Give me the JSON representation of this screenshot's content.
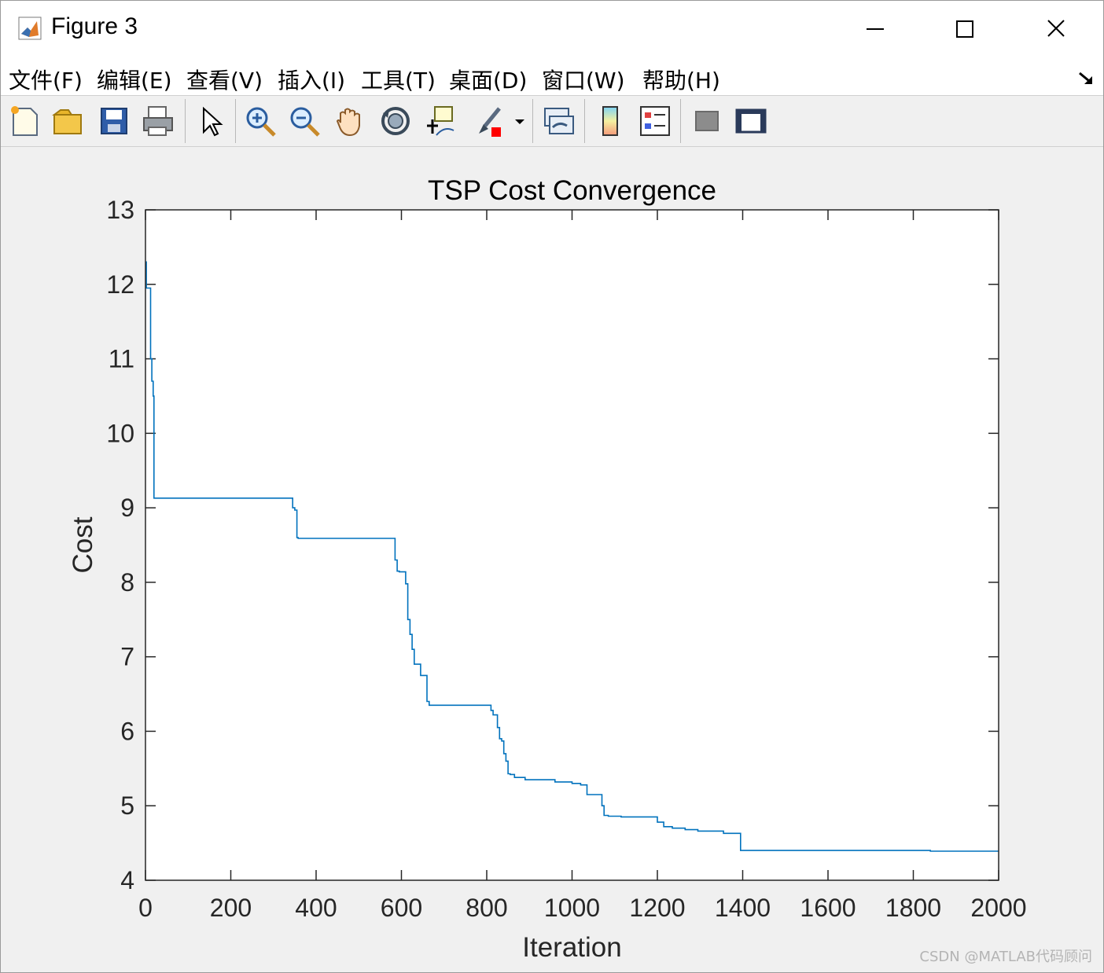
{
  "window": {
    "title": "Figure 3",
    "controls": [
      "minimize-icon",
      "maximize-icon",
      "close-icon"
    ]
  },
  "menu": {
    "items": [
      "文件(F)",
      "编辑(E)",
      "查看(V)",
      "插入(I)",
      "工具(T)",
      "桌面(D)",
      "窗口(W)",
      "帮助(H)"
    ]
  },
  "toolbar": {
    "buttons": [
      "new-figure-icon",
      "open-file-icon",
      "save-icon",
      "print-icon",
      "edit-plot-icon",
      "zoom-in-icon",
      "zoom-out-icon",
      "pan-icon",
      "rotate-3d-icon",
      "data-cursor-icon",
      "brush-icon",
      "brush-dropdown-icon",
      "link-plot-icon",
      "insert-colorbar-icon",
      "insert-legend-icon",
      "hide-plot-tools-icon",
      "show-plot-tools-icon"
    ]
  },
  "colors": {
    "line": "#0072BD",
    "axes_bg": "#ffffff",
    "figure_bg": "#f0f0f0"
  },
  "chart_data": {
    "type": "line",
    "title": "TSP Cost Convergence",
    "xlabel": "Iteration",
    "ylabel": "Cost",
    "xlim": [
      0,
      2000
    ],
    "ylim": [
      4,
      13
    ],
    "xticks": [
      0,
      200,
      400,
      600,
      800,
      1000,
      1200,
      1400,
      1600,
      1800,
      2000
    ],
    "yticks": [
      4,
      5,
      6,
      7,
      8,
      9,
      10,
      11,
      12,
      13
    ],
    "grid": false,
    "step": true,
    "series": [
      {
        "x": [
          0,
          2,
          12,
          15,
          18,
          20,
          345,
          350,
          355,
          358,
          585,
          590,
          595,
          600,
          610,
          615,
          620,
          625,
          630,
          640,
          645,
          660,
          665,
          670,
          810,
          815,
          825,
          830,
          835,
          840,
          845,
          850,
          855,
          865,
          890,
          960,
          1000,
          1020,
          1035,
          1045,
          1070,
          1075,
          1085,
          1115,
          1200,
          1215,
          1235,
          1265,
          1295,
          1355,
          1395,
          1840,
          2000
        ],
        "y": [
          12.3,
          11.95,
          11.0,
          10.7,
          10.5,
          9.13,
          9.0,
          8.97,
          8.6,
          8.59,
          8.3,
          8.15,
          8.14,
          8.14,
          7.98,
          7.5,
          7.3,
          7.1,
          6.9,
          6.9,
          6.75,
          6.4,
          6.35,
          6.35,
          6.28,
          6.22,
          6.05,
          5.9,
          5.87,
          5.7,
          5.6,
          5.43,
          5.42,
          5.38,
          5.35,
          5.32,
          5.3,
          5.28,
          5.15,
          5.15,
          5.0,
          4.87,
          4.86,
          4.85,
          4.78,
          4.72,
          4.7,
          4.68,
          4.66,
          4.63,
          4.4,
          4.39,
          4.39
        ]
      }
    ]
  },
  "watermark": "CSDN @MATLAB代码顾问"
}
